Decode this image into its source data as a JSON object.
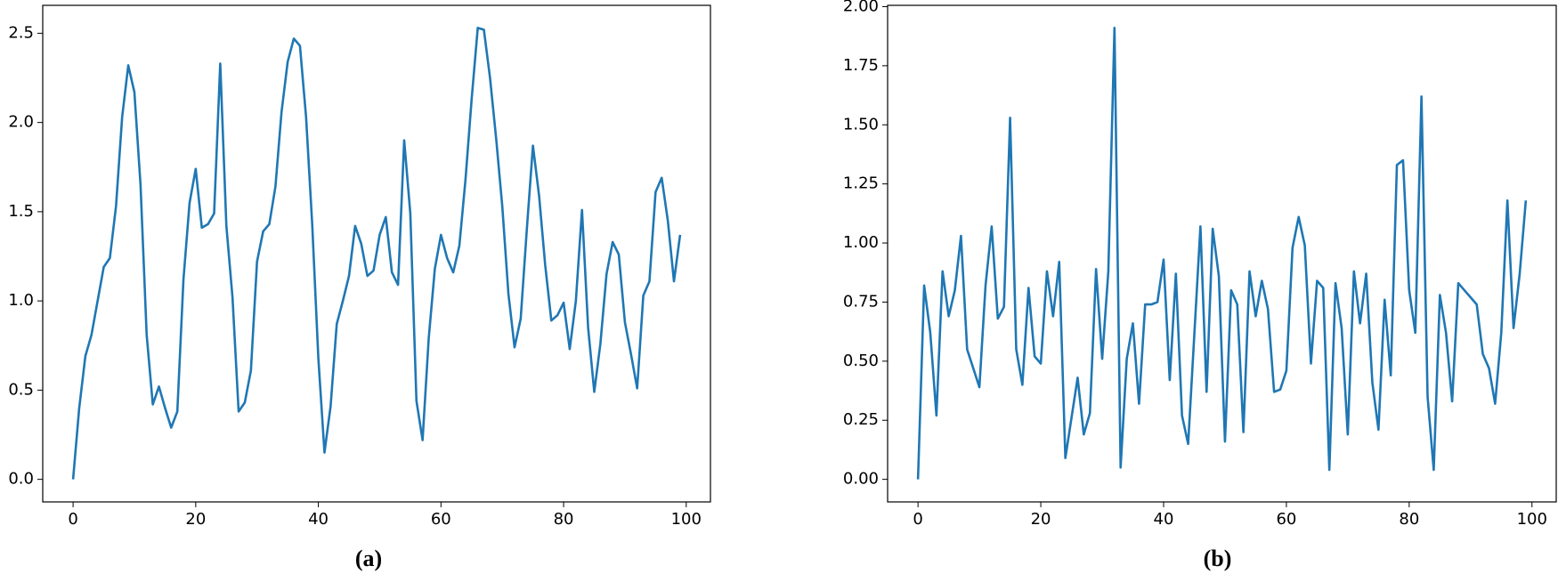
{
  "chart_data": [
    {
      "type": "line",
      "caption": "(a)",
      "x": [
        0,
        1,
        2,
        3,
        4,
        5,
        6,
        7,
        8,
        9,
        10,
        11,
        12,
        13,
        14,
        15,
        16,
        17,
        18,
        19,
        20,
        21,
        22,
        23,
        24,
        25,
        26,
        27,
        28,
        29,
        30,
        31,
        32,
        33,
        34,
        35,
        36,
        37,
        38,
        39,
        40,
        41,
        42,
        43,
        44,
        45,
        46,
        47,
        48,
        49,
        50,
        51,
        52,
        53,
        54,
        55,
        56,
        57,
        58,
        59,
        60,
        61,
        62,
        63,
        64,
        65,
        66,
        67,
        68,
        69,
        70,
        71,
        72,
        73,
        74,
        75,
        76,
        77,
        78,
        79,
        80,
        81,
        82,
        83,
        84,
        85,
        86,
        87,
        88,
        89,
        90,
        91,
        92,
        93,
        94,
        95,
        96,
        97,
        98,
        99
      ],
      "series": [
        {
          "color": "#1f77b4",
          "values": [
            0.0,
            0.4,
            0.69,
            0.81,
            1.0,
            1.19,
            1.24,
            1.53,
            2.03,
            2.32,
            2.17,
            1.65,
            0.81,
            0.42,
            0.52,
            0.4,
            0.29,
            0.38,
            1.12,
            1.55,
            1.74,
            1.41,
            1.43,
            1.49,
            2.33,
            1.42,
            1.02,
            0.38,
            0.43,
            0.61,
            1.22,
            1.39,
            1.43,
            1.64,
            2.06,
            2.34,
            2.47,
            2.43,
            2.03,
            1.43,
            0.68,
            0.15,
            0.41,
            0.87,
            1.0,
            1.14,
            1.42,
            1.32,
            1.14,
            1.17,
            1.37,
            1.47,
            1.16,
            1.09,
            1.9,
            1.49,
            0.44,
            0.22,
            0.79,
            1.18,
            1.37,
            1.24,
            1.16,
            1.31,
            1.68,
            2.13,
            2.53,
            2.52,
            2.25,
            1.91,
            1.53,
            1.04,
            0.74,
            0.9,
            1.4,
            1.87,
            1.59,
            1.2,
            0.89,
            0.92,
            0.99,
            0.73,
            1.0,
            1.51,
            0.85,
            0.49,
            0.76,
            1.15,
            1.33,
            1.26,
            0.88,
            0.7,
            0.51,
            1.03,
            1.11,
            1.61,
            1.69,
            1.45,
            1.11,
            1.37
          ]
        }
      ],
      "xlim": [
        -4.95,
        103.95
      ],
      "xticks": [
        0,
        20,
        40,
        60,
        80,
        100
      ],
      "ylim": [
        -0.1265,
        2.6565
      ],
      "yticks": [
        {
          "value": 0,
          "label": "0.0"
        },
        0.5,
        {
          "value": 1,
          "label": "1.0"
        },
        1.5,
        {
          "value": 2,
          "label": "2.0"
        },
        2.5
      ]
    },
    {
      "type": "line",
      "caption": "(b)",
      "x": [
        0,
        1,
        2,
        3,
        4,
        5,
        6,
        7,
        8,
        9,
        10,
        11,
        12,
        13,
        14,
        15,
        16,
        17,
        18,
        19,
        20,
        21,
        22,
        23,
        24,
        25,
        26,
        27,
        28,
        29,
        30,
        31,
        32,
        33,
        34,
        35,
        36,
        37,
        38,
        39,
        40,
        41,
        42,
        43,
        44,
        45,
        46,
        47,
        48,
        49,
        50,
        51,
        52,
        53,
        54,
        55,
        56,
        57,
        58,
        59,
        60,
        61,
        62,
        63,
        64,
        65,
        66,
        67,
        68,
        69,
        70,
        71,
        72,
        73,
        74,
        75,
        76,
        77,
        78,
        79,
        80,
        81,
        82,
        83,
        84,
        85,
        86,
        87,
        88,
        89,
        90,
        91,
        92,
        93,
        94,
        95,
        96,
        97,
        98,
        99
      ],
      "series": [
        {
          "color": "#1f77b4",
          "values": [
            0.0,
            0.82,
            0.62,
            0.27,
            0.88,
            0.69,
            0.8,
            1.03,
            0.55,
            0.47,
            0.39,
            0.82,
            1.07,
            0.68,
            0.73,
            1.53,
            0.55,
            0.4,
            0.81,
            0.52,
            0.49,
            0.88,
            0.69,
            0.92,
            0.09,
            0.26,
            0.43,
            0.19,
            0.28,
            0.89,
            0.51,
            0.88,
            1.91,
            0.05,
            0.51,
            0.66,
            0.32,
            0.74,
            0.74,
            0.75,
            0.93,
            0.42,
            0.87,
            0.27,
            0.15,
            0.61,
            1.07,
            0.37,
            1.06,
            0.86,
            0.16,
            0.8,
            0.74,
            0.2,
            0.88,
            0.69,
            0.84,
            0.72,
            0.37,
            0.38,
            0.46,
            0.98,
            1.11,
            0.99,
            0.49,
            0.84,
            0.81,
            0.04,
            0.83,
            0.64,
            0.19,
            0.88,
            0.66,
            0.87,
            0.41,
            0.21,
            0.76,
            0.44,
            1.33,
            1.35,
            0.8,
            0.62,
            1.62,
            0.35,
            0.04,
            0.78,
            0.62,
            0.33,
            0.83,
            0.8,
            0.77,
            0.74,
            0.53,
            0.47,
            0.32,
            0.62,
            1.18,
            0.64,
            0.87,
            1.18
          ]
        }
      ],
      "xlim": [
        -4.95,
        103.95
      ],
      "xticks": [
        0,
        20,
        40,
        60,
        80,
        100
      ],
      "ylim": [
        -0.0955,
        2.0055
      ],
      "yticks": [
        {
          "value": 0,
          "label": "0.00"
        },
        {
          "value": 0.25,
          "label": "0.25"
        },
        {
          "value": 0.5,
          "label": "0.50"
        },
        {
          "value": 0.75,
          "label": "0.75"
        },
        {
          "value": 1,
          "label": "1.00"
        },
        {
          "value": 1.25,
          "label": "1.25"
        },
        {
          "value": 1.5,
          "label": "1.50"
        },
        {
          "value": 1.75,
          "label": "1.75"
        },
        {
          "value": 2,
          "label": "2.00"
        }
      ]
    }
  ]
}
